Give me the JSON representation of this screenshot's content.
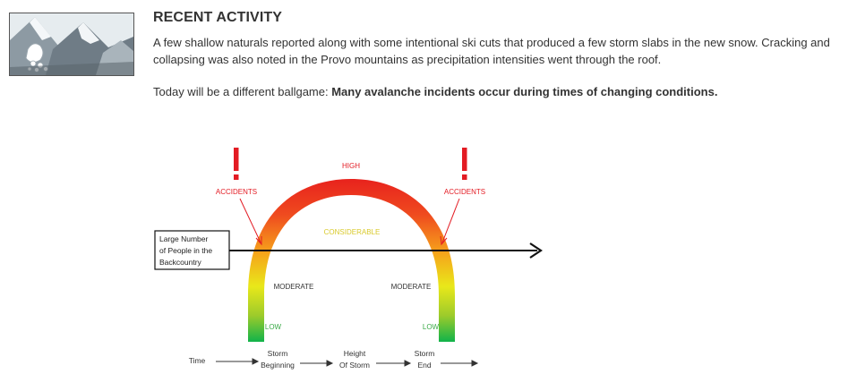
{
  "activity": {
    "heading": "RECENT ACTIVITY",
    "paragraph1": "A few shallow naturals reported along with some intentional ski cuts that produced a few storm slabs in the new snow. Cracking and collapsing was also noted in the Provo mountains as precipitation intensities went through the roof.",
    "paragraph2_lead": "Today will be a different ballgame: ",
    "paragraph2_bold": "Many avalanche incidents occur during times of changing conditions."
  },
  "diagram": {
    "danger_levels": {
      "high": "HIGH",
      "considerable": "CONSIDERABLE",
      "moderate_left": "MODERATE",
      "moderate_right": "MODERATE",
      "low_left": "LOW",
      "low_right": "LOW"
    },
    "accidents_left": "ACCIDENTS",
    "accidents_right": "ACCIDENTS",
    "people_box": [
      "Large Number",
      "of People in the",
      "Backcountry"
    ],
    "timeline": {
      "time": "Time",
      "storm_beginning": [
        "Storm",
        "Beginning"
      ],
      "height_of_storm": [
        "Height",
        "Of Storm"
      ],
      "storm_end": [
        "Storm",
        "End"
      ]
    },
    "colors": {
      "high": "#e8221d",
      "considerable": "#f6a21b",
      "moderate": "#e9e81a",
      "low": "#11b34a",
      "label_red": "#e31b23",
      "label_yellow": "#d9c92a",
      "label_green": "#3aaa47"
    }
  },
  "icons": {
    "thumbnail": "avalanche-mountain-icon"
  }
}
